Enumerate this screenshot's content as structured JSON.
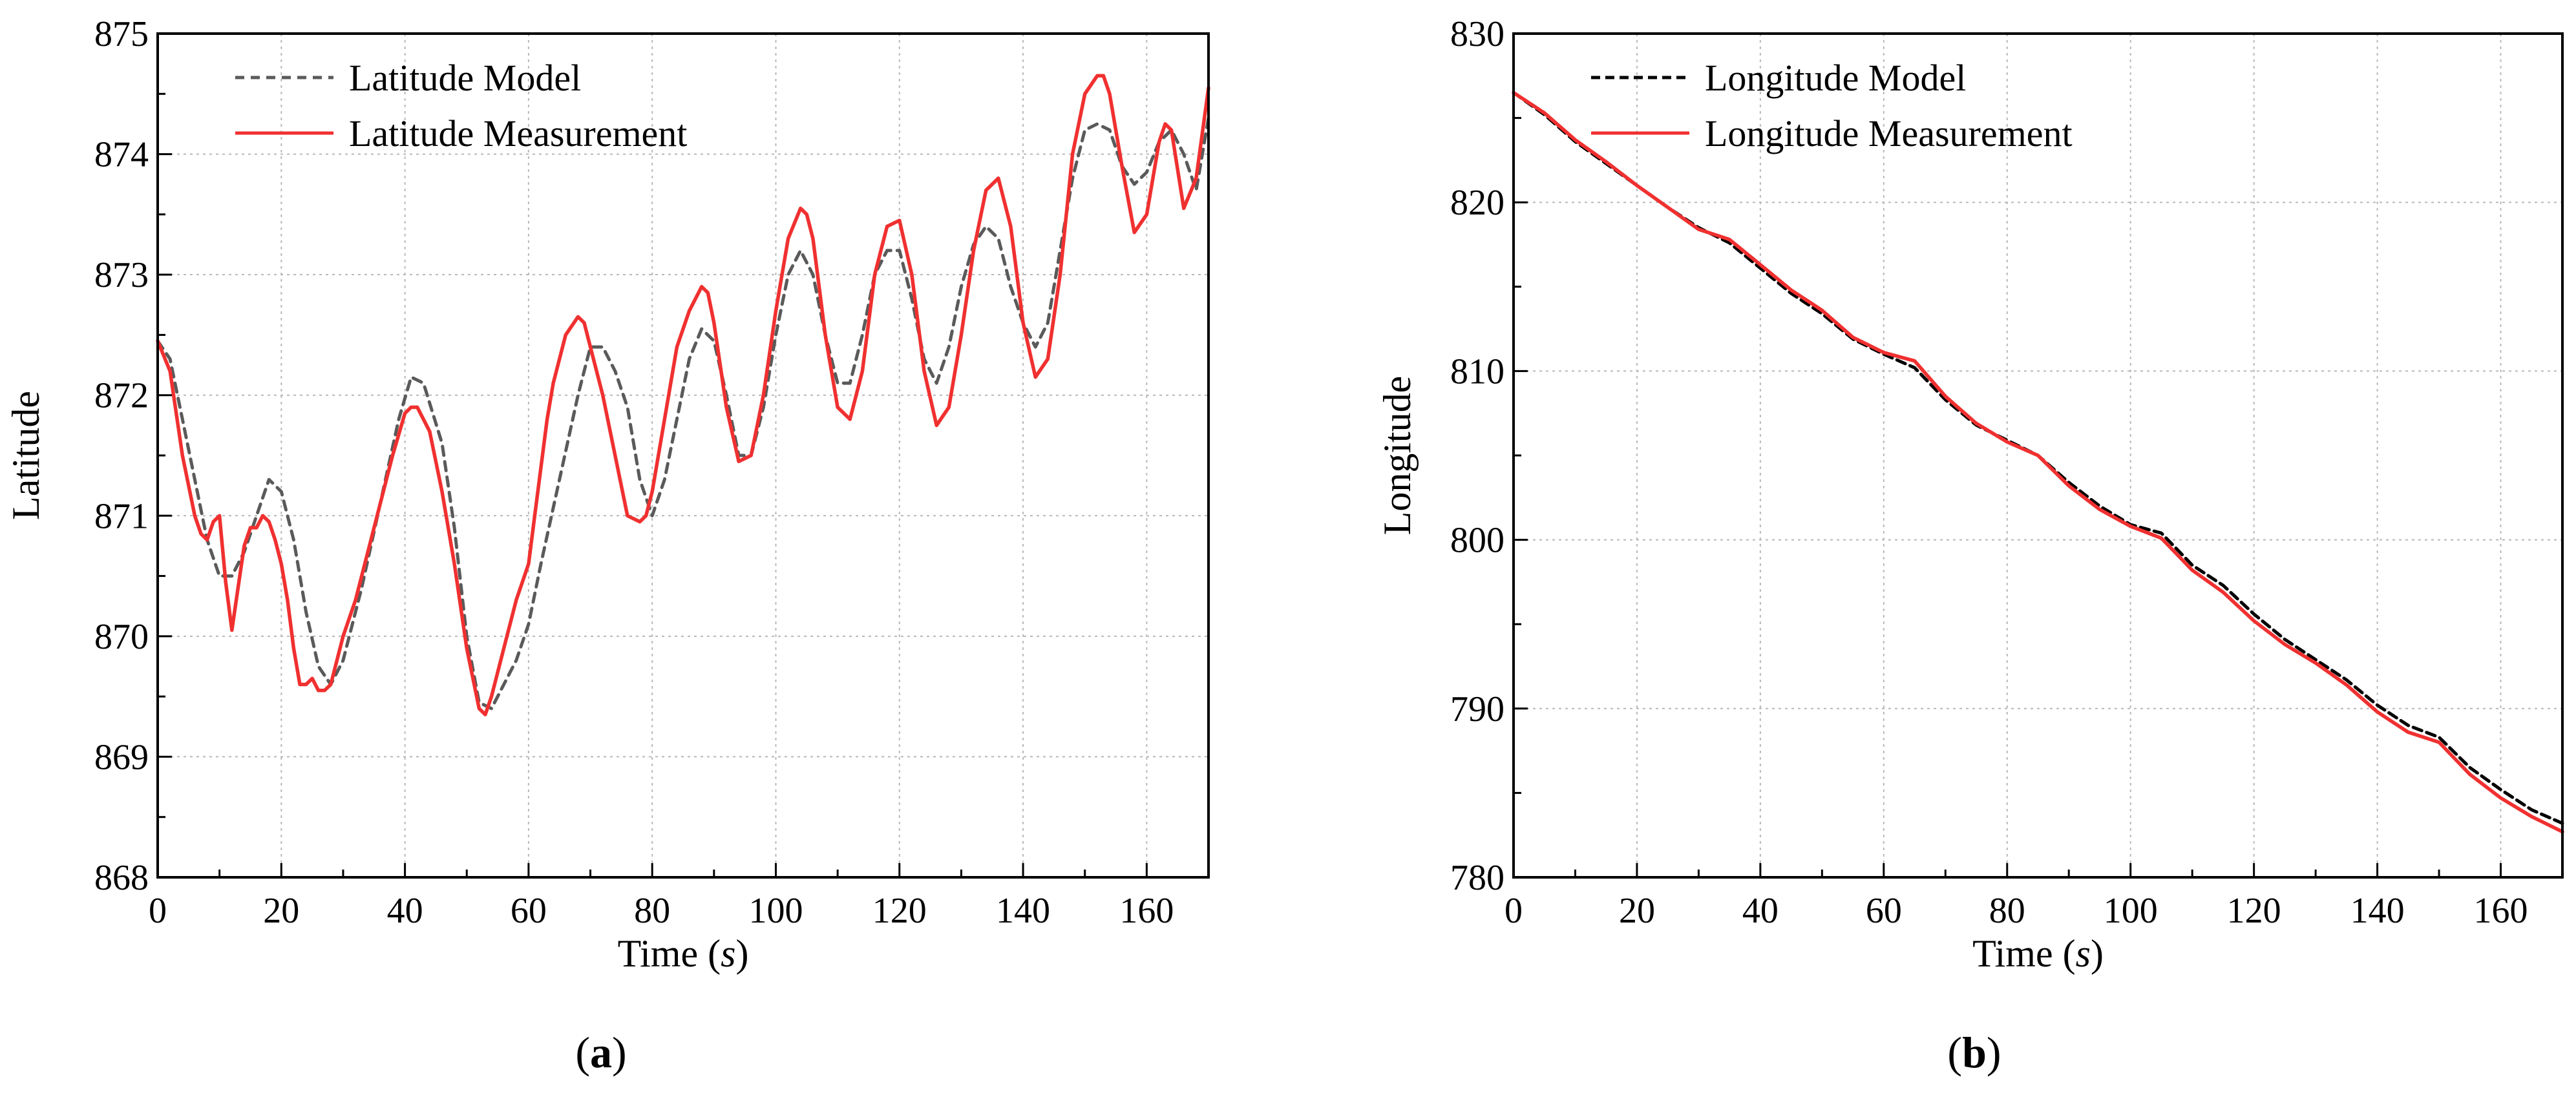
{
  "colors": {
    "measurement": "#f03030",
    "model_a": "#5a5a5a",
    "model_b": "#000000"
  },
  "chart_data": [
    {
      "type": "line",
      "panel_label": "a",
      "xlabel_main": "Time",
      "xlabel_unit": "s",
      "ylabel": "Latitude",
      "xlim": [
        0,
        170
      ],
      "ylim": [
        868,
        875
      ],
      "xticks": [
        0,
        20,
        40,
        60,
        80,
        100,
        120,
        140,
        160
      ],
      "yticks": [
        868,
        869,
        870,
        871,
        872,
        873,
        874,
        875
      ],
      "xtick_labels": [
        "0",
        "20",
        "40",
        "60",
        "80",
        "100",
        "120",
        "140",
        "160"
      ],
      "ytick_labels": [
        "868",
        "869",
        "870",
        "871",
        "872",
        "873",
        "874",
        "875"
      ],
      "grid": true,
      "legend_position": "top-left",
      "series": [
        {
          "name": "Latitude Model",
          "style": "dashed",
          "color": "#5a5a5a",
          "x": [
            0,
            2,
            4,
            6,
            8,
            10,
            12,
            14,
            16,
            18,
            20,
            22,
            24,
            26,
            28,
            30,
            33,
            36,
            39,
            41,
            43,
            46,
            48,
            50,
            52,
            54,
            56,
            58,
            60,
            62,
            65,
            68,
            70,
            72,
            74,
            76,
            78,
            80,
            82,
            84,
            86,
            88,
            90,
            92,
            94,
            96,
            98,
            100,
            102,
            104,
            106,
            108,
            110,
            112,
            114,
            116,
            118,
            120,
            122,
            124,
            126,
            128,
            130,
            132,
            134,
            136,
            138,
            140,
            142,
            144,
            146,
            148,
            150,
            152,
            154,
            156,
            158,
            160,
            162,
            164,
            166,
            168,
            170
          ],
          "y": [
            872.45,
            872.3,
            871.8,
            871.3,
            870.8,
            870.5,
            870.5,
            870.7,
            871.0,
            871.3,
            871.2,
            870.8,
            870.2,
            869.75,
            869.6,
            869.8,
            870.4,
            871.1,
            871.8,
            872.15,
            872.1,
            871.6,
            870.9,
            870.0,
            869.45,
            869.4,
            869.6,
            869.8,
            870.1,
            870.6,
            871.3,
            872.0,
            872.4,
            872.4,
            872.2,
            871.9,
            871.3,
            871.0,
            871.3,
            871.8,
            872.3,
            872.55,
            872.45,
            872.0,
            871.5,
            871.5,
            871.9,
            872.5,
            873.0,
            873.2,
            873.0,
            872.5,
            872.1,
            872.1,
            872.5,
            873.0,
            873.2,
            873.2,
            872.8,
            872.3,
            872.1,
            872.4,
            872.9,
            873.25,
            873.4,
            873.3,
            872.9,
            872.6,
            872.4,
            872.6,
            873.2,
            873.8,
            874.2,
            874.25,
            874.2,
            873.9,
            873.75,
            873.85,
            874.1,
            874.2,
            874.0,
            873.7,
            874.3
          ]
        },
        {
          "name": "Latitude Measurement",
          "style": "solid",
          "color": "#f03030",
          "x": [
            0,
            2,
            4,
            6,
            7,
            8,
            9,
            10,
            11,
            12,
            13,
            14,
            15,
            16,
            17,
            18,
            19,
            20,
            21,
            22,
            23,
            24,
            25,
            26,
            27,
            28,
            30,
            32,
            35,
            38,
            40,
            41,
            42,
            44,
            46,
            48,
            50,
            52,
            53,
            54,
            56,
            58,
            60,
            61,
            62,
            63,
            64,
            66,
            68,
            69,
            70,
            72,
            74,
            76,
            78,
            79,
            80,
            82,
            84,
            86,
            88,
            89,
            90,
            92,
            94,
            96,
            98,
            100,
            102,
            104,
            105,
            106,
            108,
            110,
            112,
            114,
            116,
            118,
            120,
            122,
            124,
            126,
            128,
            130,
            132,
            134,
            136,
            138,
            140,
            142,
            144,
            146,
            148,
            150,
            152,
            153,
            154,
            156,
            158,
            160,
            162,
            163,
            164,
            166,
            168,
            170
          ],
          "y": [
            872.45,
            872.2,
            871.5,
            871.0,
            870.85,
            870.8,
            870.95,
            871.0,
            870.45,
            870.05,
            870.4,
            870.75,
            870.9,
            870.9,
            871.0,
            870.95,
            870.8,
            870.6,
            870.3,
            869.9,
            869.6,
            869.6,
            869.65,
            869.55,
            869.55,
            869.6,
            870.0,
            870.3,
            870.9,
            871.5,
            871.85,
            871.9,
            871.9,
            871.7,
            871.2,
            870.6,
            869.9,
            869.4,
            869.35,
            869.5,
            869.9,
            870.3,
            870.6,
            871.0,
            871.4,
            871.8,
            872.1,
            872.5,
            872.65,
            872.6,
            872.4,
            872.0,
            871.5,
            871.0,
            870.95,
            871.0,
            871.2,
            871.8,
            872.4,
            872.7,
            872.9,
            872.85,
            872.6,
            871.9,
            871.45,
            871.5,
            872.0,
            872.7,
            873.3,
            873.55,
            873.5,
            873.3,
            872.5,
            871.9,
            871.8,
            872.2,
            873.0,
            873.4,
            873.45,
            873.0,
            872.2,
            871.75,
            871.9,
            872.5,
            873.2,
            873.7,
            873.8,
            873.4,
            872.6,
            872.15,
            872.3,
            873.0,
            874.0,
            874.5,
            874.65,
            874.65,
            874.5,
            873.9,
            873.35,
            873.5,
            874.1,
            874.25,
            874.2,
            873.55,
            873.8,
            874.55
          ]
        }
      ]
    },
    {
      "type": "line",
      "panel_label": "b",
      "xlabel_main": "Time",
      "xlabel_unit": "s",
      "ylabel": "Longitude",
      "xlim": [
        0,
        170
      ],
      "ylim": [
        780,
        830
      ],
      "xticks": [
        0,
        20,
        40,
        60,
        80,
        100,
        120,
        140,
        160
      ],
      "yticks": [
        780,
        790,
        800,
        810,
        820,
        830
      ],
      "xtick_labels": [
        "0",
        "20",
        "40",
        "60",
        "80",
        "100",
        "120",
        "140",
        "160"
      ],
      "ytick_labels": [
        "780",
        "790",
        "800",
        "810",
        "820",
        "830"
      ],
      "grid": true,
      "legend_position": "top-left",
      "series": [
        {
          "name": "Longitude Model",
          "style": "dashed",
          "color": "#000000",
          "x": [
            0,
            5,
            10,
            15,
            20,
            25,
            30,
            35,
            40,
            45,
            50,
            55,
            60,
            65,
            70,
            75,
            80,
            85,
            90,
            95,
            100,
            105,
            110,
            115,
            120,
            125,
            130,
            135,
            140,
            145,
            150,
            155,
            160,
            165,
            170
          ],
          "y": [
            826.5,
            825.2,
            823.6,
            822.3,
            821.0,
            819.7,
            818.5,
            817.6,
            816.1,
            814.6,
            813.4,
            811.9,
            811.0,
            810.2,
            808.3,
            806.8,
            805.9,
            805.0,
            803.4,
            802.0,
            800.9,
            800.4,
            798.5,
            797.3,
            795.6,
            794.1,
            792.9,
            791.7,
            790.2,
            789.0,
            788.3,
            786.5,
            785.2,
            784.0,
            783.2
          ]
        },
        {
          "name": "Longitude Measurement",
          "style": "solid",
          "color": "#f03030",
          "x": [
            0,
            5,
            10,
            15,
            20,
            25,
            30,
            35,
            40,
            45,
            50,
            55,
            60,
            65,
            70,
            75,
            80,
            85,
            90,
            95,
            100,
            105,
            110,
            115,
            120,
            125,
            130,
            135,
            140,
            145,
            150,
            155,
            160,
            165,
            170
          ],
          "y": [
            826.5,
            825.3,
            823.7,
            822.4,
            821.0,
            819.7,
            818.4,
            817.8,
            816.3,
            814.8,
            813.6,
            812.0,
            811.1,
            810.6,
            808.5,
            806.9,
            805.8,
            805.0,
            803.2,
            801.8,
            800.8,
            800.1,
            798.2,
            796.9,
            795.2,
            793.8,
            792.7,
            791.4,
            789.8,
            788.6,
            788.0,
            786.1,
            784.7,
            783.6,
            782.7
          ]
        }
      ]
    }
  ]
}
